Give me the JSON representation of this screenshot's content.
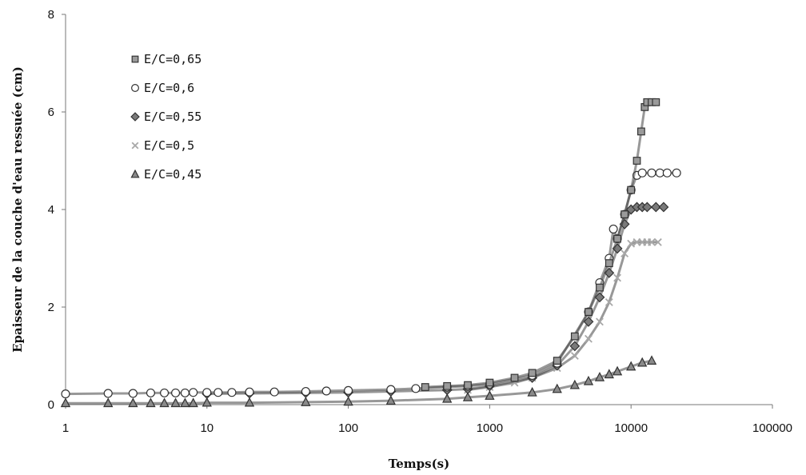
{
  "chart_data": {
    "type": "scatter",
    "title": "",
    "xlabel": "Temps(s)",
    "ylabel": "Epaisseur de la couche d'eau ressuée (cm)",
    "xscale": "log",
    "xlim": [
      1,
      100000
    ],
    "ylim": [
      0,
      8
    ],
    "x_ticks": [
      1,
      10,
      100,
      1000,
      10000,
      100000
    ],
    "x_tick_labels": [
      "1",
      "10",
      "100",
      "1000",
      "10000",
      "100000"
    ],
    "y_ticks": [
      0,
      2,
      4,
      6,
      8
    ],
    "y_tick_labels": [
      "0",
      "2",
      "4",
      "6",
      "8"
    ],
    "grid": false,
    "legend_position": "top-left",
    "series": [
      {
        "name": "E/C=0,65",
        "marker": "square",
        "color": "#9a9a9a",
        "x": [
          350,
          500,
          700,
          1000,
          1500,
          2000,
          3000,
          4000,
          5000,
          6000,
          7000,
          8000,
          9000,
          10000,
          11000,
          11800,
          12500,
          13000,
          14000,
          15000
        ],
        "y": [
          0.36,
          0.38,
          0.4,
          0.45,
          0.55,
          0.65,
          0.9,
          1.4,
          1.9,
          2.4,
          2.9,
          3.4,
          3.9,
          4.4,
          5.0,
          5.6,
          6.1,
          6.2,
          6.2,
          6.2
        ]
      },
      {
        "name": "E/C=0,6",
        "marker": "circle",
        "color": "#ffffff",
        "x": [
          1,
          2,
          3,
          4,
          5,
          6,
          7,
          8,
          10,
          12,
          15,
          20,
          30,
          50,
          70,
          100,
          200,
          300,
          500,
          700,
          1000,
          2000,
          3000,
          5000,
          6000,
          7000,
          7500,
          8000,
          9000,
          10000,
          11000,
          12000,
          14000,
          16000,
          18000,
          21000
        ],
        "y": [
          0.22,
          0.23,
          0.23,
          0.24,
          0.24,
          0.24,
          0.24,
          0.25,
          0.25,
          0.25,
          0.25,
          0.26,
          0.26,
          0.27,
          0.28,
          0.29,
          0.31,
          0.33,
          0.36,
          0.38,
          0.42,
          0.6,
          0.85,
          1.9,
          2.5,
          3.0,
          3.6,
          3.4,
          3.9,
          4.4,
          4.7,
          4.75,
          4.75,
          4.75,
          4.75,
          4.75
        ]
      },
      {
        "name": "E/C=0,55",
        "marker": "diamond",
        "color": "#7a7a7a",
        "x": [
          10,
          20,
          50,
          100,
          200,
          500,
          700,
          1000,
          2000,
          3000,
          4000,
          5000,
          6000,
          7000,
          8000,
          9000,
          10000,
          11000,
          12000,
          13000,
          15000,
          17000
        ],
        "y": [
          0.22,
          0.23,
          0.24,
          0.25,
          0.27,
          0.3,
          0.32,
          0.38,
          0.55,
          0.8,
          1.2,
          1.7,
          2.2,
          2.7,
          3.2,
          3.7,
          4.0,
          4.05,
          4.05,
          4.05,
          4.05,
          4.05
        ]
      },
      {
        "name": "E/C=0,5",
        "marker": "cross",
        "color": "#a8a8a8",
        "x": [
          700,
          1000,
          1500,
          2000,
          3000,
          4000,
          5000,
          6000,
          7000,
          8000,
          9000,
          10000,
          11000,
          12000,
          13000,
          14000,
          15500
        ],
        "y": [
          0.3,
          0.36,
          0.45,
          0.55,
          0.75,
          1.0,
          1.35,
          1.7,
          2.1,
          2.6,
          3.1,
          3.3,
          3.33,
          3.33,
          3.33,
          3.33,
          3.33
        ]
      },
      {
        "name": "E/C=0,45",
        "marker": "triangle",
        "color": "#8a8a8a",
        "x": [
          1,
          2,
          3,
          4,
          5,
          6,
          7,
          8,
          10,
          20,
          50,
          100,
          200,
          500,
          700,
          1000,
          2000,
          3000,
          4000,
          5000,
          6000,
          7000,
          8000,
          10000,
          12000,
          14000
        ],
        "y": [
          0.03,
          0.03,
          0.03,
          0.03,
          0.03,
          0.03,
          0.03,
          0.03,
          0.04,
          0.04,
          0.05,
          0.06,
          0.08,
          0.12,
          0.15,
          0.18,
          0.25,
          0.32,
          0.4,
          0.48,
          0.56,
          0.62,
          0.68,
          0.78,
          0.86,
          0.9
        ]
      }
    ]
  }
}
